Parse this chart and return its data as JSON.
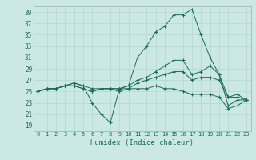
{
  "xlabel": "Humidex (Indice chaleur)",
  "background_color": "#cce8e4",
  "grid_color": "#b0d8d0",
  "line_color": "#1a6b5a",
  "xlim": [
    -0.5,
    23.5
  ],
  "ylim": [
    18,
    40
  ],
  "yticks": [
    19,
    21,
    23,
    25,
    27,
    29,
    31,
    33,
    35,
    37,
    39
  ],
  "xticks": [
    0,
    1,
    2,
    3,
    4,
    5,
    6,
    7,
    8,
    9,
    10,
    11,
    12,
    13,
    14,
    15,
    16,
    17,
    18,
    19,
    20,
    21,
    22,
    23
  ],
  "series": [
    [
      25.0,
      25.5,
      25.5,
      26.0,
      26.5,
      26.0,
      23.0,
      21.0,
      19.5,
      25.5,
      26.0,
      31.0,
      33.0,
      35.5,
      36.5,
      38.5,
      38.5,
      39.5,
      35.0,
      31.0,
      28.0,
      22.5,
      23.5,
      23.5
    ],
    [
      25.0,
      25.5,
      25.5,
      26.0,
      26.5,
      26.0,
      25.5,
      25.5,
      25.5,
      25.5,
      26.0,
      27.0,
      27.5,
      28.5,
      29.5,
      30.5,
      30.5,
      28.0,
      28.5,
      29.5,
      28.0,
      24.0,
      24.5,
      23.5
    ],
    [
      25.0,
      25.5,
      25.5,
      26.0,
      26.0,
      25.5,
      25.0,
      25.5,
      25.5,
      25.5,
      25.5,
      26.5,
      27.0,
      27.5,
      28.0,
      28.5,
      28.5,
      27.0,
      27.5,
      27.5,
      27.0,
      24.0,
      24.0,
      23.5
    ],
    [
      25.0,
      25.5,
      25.5,
      26.0,
      26.0,
      25.5,
      25.0,
      25.5,
      25.5,
      25.0,
      25.5,
      25.5,
      25.5,
      26.0,
      25.5,
      25.5,
      25.0,
      24.5,
      24.5,
      24.5,
      24.0,
      22.0,
      22.5,
      23.5
    ]
  ]
}
